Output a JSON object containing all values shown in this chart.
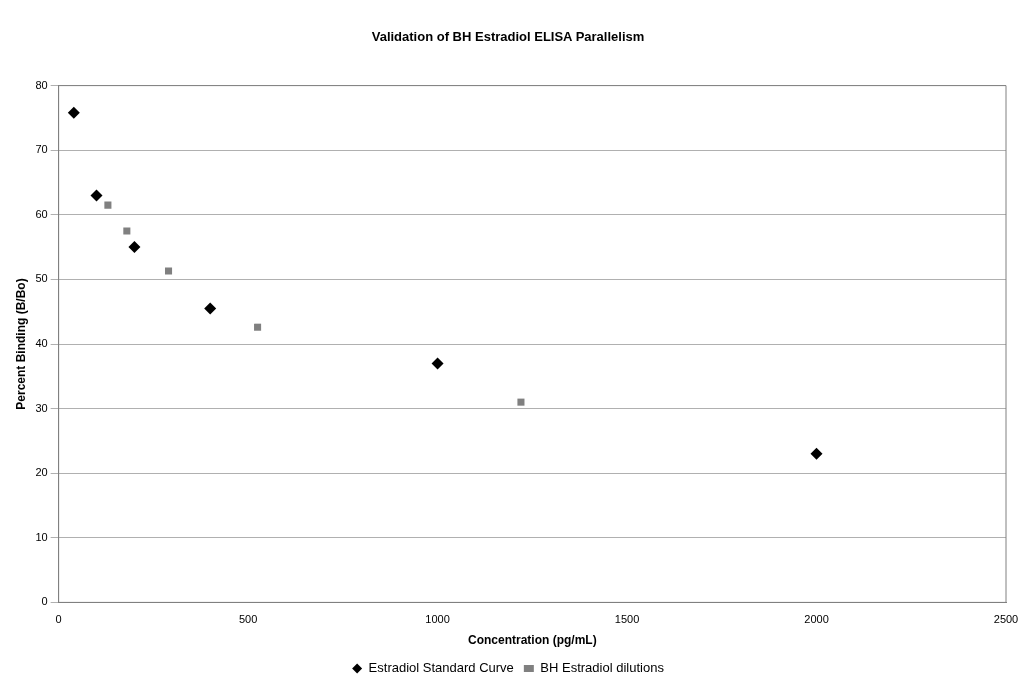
{
  "chart_data": {
    "type": "scatter",
    "title": "Validation of BH Estradiol ELISA Parallelism",
    "xlabel": "Concentration (pg/mL)",
    "ylabel": "Percent Binding (B/Bo)",
    "series": [
      {
        "name": "Estradiol Standard Curve",
        "color": "#000000",
        "marker": "diamond",
        "x": [
          40,
          100,
          200,
          400,
          1000,
          2000
        ],
        "values": [
          75.8,
          63,
          55,
          45.5,
          37,
          23
        ]
      },
      {
        "name": "BH Estradiol dilutions",
        "color": "#808080",
        "marker": "square",
        "x": [
          130,
          180,
          290,
          525,
          1220
        ],
        "values": [
          61.5,
          57.5,
          51.3,
          42.6,
          31
        ]
      }
    ],
    "xlim": [
      0,
      2500
    ],
    "xticks": [
      0,
      500,
      1000,
      1500,
      2000,
      2500
    ],
    "ylim": [
      0,
      80
    ],
    "yticks": [
      0,
      10,
      20,
      30,
      40,
      50,
      60,
      70,
      80
    ],
    "grid": "y",
    "legend": "bottom"
  }
}
